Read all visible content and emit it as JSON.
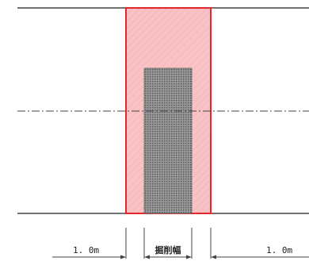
{
  "colors": {
    "excavation_fill": "#f9c3c6",
    "excavation_border": "#e0282f",
    "pipe_fill": "#8c8c8c",
    "line": "#444444"
  },
  "dimensions": {
    "left_label": "1. 0m",
    "center_label": "掘削幅",
    "right_label": "1. 0m"
  }
}
